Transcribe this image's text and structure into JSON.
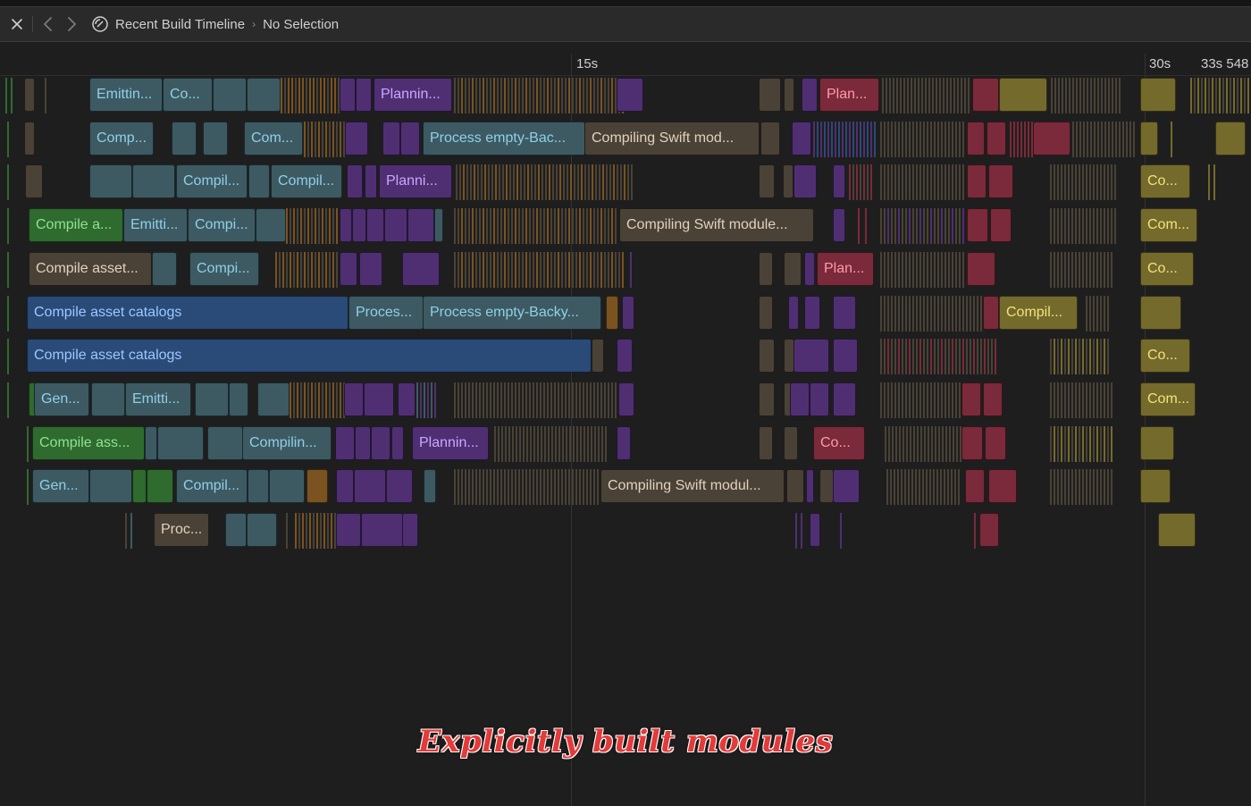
{
  "nav": {
    "title": "Recent Build Timeline",
    "breadcrumb_separator": "›",
    "selection": "No Selection"
  },
  "ruler": {
    "ticks": [
      "15s",
      "30s",
      "33s 548"
    ]
  },
  "colors": {
    "background": "#1e1e1e",
    "teal": "#3d5a63",
    "teal_text": "#8fd0e6",
    "blue": "#2a4a78",
    "blue_text": "#9cc8ff",
    "green": "#2f6a2f",
    "green_text": "#8ee38e",
    "purple": "#4f2f72",
    "purple_text": "#c8a8ff",
    "tan": "#4a4236",
    "tan_text": "#e2d2bc",
    "red": "#7a2a3a",
    "red_text": "#ff9aa8",
    "yellow": "#746a2c",
    "yellow_text": "#f2e27a",
    "orange": "#7a5320"
  },
  "tasks": {
    "row1": [
      "Emittin...",
      "Co...",
      "Plannin...",
      "Plan..."
    ],
    "row2": [
      "Comp...",
      "Com...",
      "Process empty-Bac...",
      "Compiling Swift mod..."
    ],
    "row3": [
      "Compil...",
      "Compil...",
      "Planni...",
      "Co..."
    ],
    "row4": [
      "Compile a...",
      "Emitti...",
      "Compi...",
      "Compiling Swift module...",
      "Com..."
    ],
    "row5": [
      "Compile asset...",
      "Compi...",
      "Plan...",
      "Co..."
    ],
    "row6": [
      "Compile asset catalogs",
      "Proces...",
      "Process empty-Backy...",
      "Compil..."
    ],
    "row7": [
      "Compile asset catalogs",
      "Co..."
    ],
    "row8": [
      "Gen...",
      "Emitti...",
      "Com..."
    ],
    "row9": [
      "Compile ass...",
      "Compilin...",
      "Plannin...",
      "Co..."
    ],
    "row10": [
      "Gen...",
      "Compil...",
      "Compiling Swift modul..."
    ],
    "row11": [
      "Proc..."
    ]
  },
  "caption": "Explicitly built modules"
}
